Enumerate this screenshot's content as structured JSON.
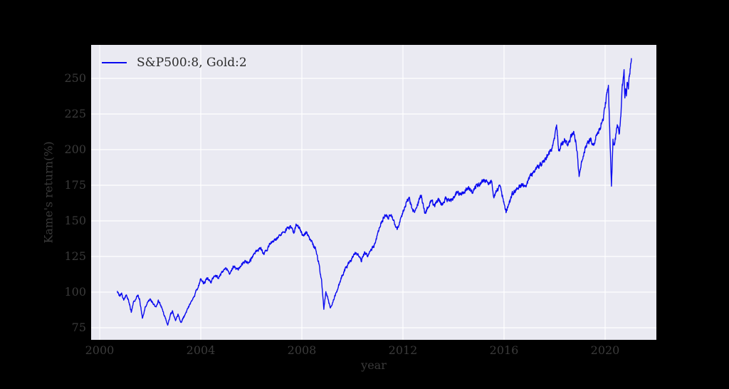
{
  "figure": {
    "page_background": "#000000",
    "plot_background": "#eaeaf2",
    "grid_color": "#ffffff",
    "line_color": "#0a0af0",
    "tick_label_color": "#3a3a3a",
    "legend_text_color": "#2b2b2b"
  },
  "chart_data": {
    "type": "line",
    "title": "",
    "xlabel": "year",
    "ylabel": "Kame's return(%)",
    "grid": true,
    "legend_position": "upper left",
    "legend": [
      {
        "label": "S&P500:8, Gold:2",
        "color": "#0a0af0"
      }
    ],
    "x_ticks": [
      2000,
      2004,
      2008,
      2012,
      2016,
      2020
    ],
    "y_ticks": [
      75,
      100,
      125,
      150,
      175,
      200,
      225,
      250
    ],
    "xlim": [
      1999.662,
      2022.028
    ],
    "ylim": [
      66.5,
      273.5
    ],
    "series": [
      {
        "name": "S&P500:8, Gold:2",
        "x_start": 2000.7,
        "x_end": 2021.04,
        "anchors": [
          [
            2000.7,
            100
          ],
          [
            2000.78,
            97
          ],
          [
            2000.86,
            99
          ],
          [
            2000.95,
            95
          ],
          [
            2001.05,
            98
          ],
          [
            2001.15,
            94
          ],
          [
            2001.25,
            86
          ],
          [
            2001.33,
            92
          ],
          [
            2001.42,
            95
          ],
          [
            2001.5,
            98
          ],
          [
            2001.58,
            95
          ],
          [
            2001.69,
            82
          ],
          [
            2001.8,
            89
          ],
          [
            2001.9,
            93
          ],
          [
            2002.0,
            95
          ],
          [
            2002.1,
            92
          ],
          [
            2002.22,
            90
          ],
          [
            2002.33,
            94
          ],
          [
            2002.45,
            89
          ],
          [
            2002.55,
            84
          ],
          [
            2002.7,
            77
          ],
          [
            2002.8,
            84
          ],
          [
            2002.88,
            86
          ],
          [
            2003.0,
            80
          ],
          [
            2003.1,
            84
          ],
          [
            2003.22,
            79
          ],
          [
            2003.35,
            83
          ],
          [
            2003.5,
            89
          ],
          [
            2003.65,
            94
          ],
          [
            2003.8,
            100
          ],
          [
            2003.92,
            105
          ],
          [
            2004.0,
            109
          ],
          [
            2004.12,
            106
          ],
          [
            2004.25,
            110
          ],
          [
            2004.4,
            107
          ],
          [
            2004.55,
            112
          ],
          [
            2004.7,
            110
          ],
          [
            2004.85,
            114
          ],
          [
            2005.0,
            117
          ],
          [
            2005.15,
            113
          ],
          [
            2005.3,
            118
          ],
          [
            2005.45,
            116
          ],
          [
            2005.6,
            119
          ],
          [
            2005.75,
            122
          ],
          [
            2005.9,
            120
          ],
          [
            2006.05,
            125
          ],
          [
            2006.2,
            129
          ],
          [
            2006.35,
            131
          ],
          [
            2006.5,
            127
          ],
          [
            2006.65,
            131
          ],
          [
            2006.8,
            135
          ],
          [
            2006.95,
            137
          ],
          [
            2007.1,
            139
          ],
          [
            2007.25,
            142
          ],
          [
            2007.4,
            144
          ],
          [
            2007.55,
            146
          ],
          [
            2007.68,
            142
          ],
          [
            2007.8,
            148
          ],
          [
            2007.92,
            144
          ],
          [
            2008.05,
            139
          ],
          [
            2008.17,
            142
          ],
          [
            2008.3,
            138
          ],
          [
            2008.42,
            134
          ],
          [
            2008.55,
            130
          ],
          [
            2008.67,
            120
          ],
          [
            2008.78,
            108
          ],
          [
            2008.87,
            88
          ],
          [
            2008.95,
            100
          ],
          [
            2009.03,
            95
          ],
          [
            2009.13,
            89
          ],
          [
            2009.22,
            93
          ],
          [
            2009.33,
            98
          ],
          [
            2009.45,
            104
          ],
          [
            2009.58,
            111
          ],
          [
            2009.72,
            116
          ],
          [
            2009.85,
            120
          ],
          [
            2010.0,
            124
          ],
          [
            2010.12,
            128
          ],
          [
            2010.25,
            126
          ],
          [
            2010.35,
            122
          ],
          [
            2010.48,
            128
          ],
          [
            2010.6,
            125
          ],
          [
            2010.72,
            129
          ],
          [
            2010.85,
            132
          ],
          [
            2010.95,
            138
          ],
          [
            2011.05,
            144
          ],
          [
            2011.18,
            150
          ],
          [
            2011.3,
            155
          ],
          [
            2011.42,
            152
          ],
          [
            2011.52,
            155
          ],
          [
            2011.63,
            150
          ],
          [
            2011.77,
            144
          ],
          [
            2011.88,
            149
          ],
          [
            2012.0,
            156
          ],
          [
            2012.12,
            162
          ],
          [
            2012.25,
            166
          ],
          [
            2012.35,
            160
          ],
          [
            2012.45,
            156
          ],
          [
            2012.58,
            162
          ],
          [
            2012.73,
            168
          ],
          [
            2012.87,
            155
          ],
          [
            2013.0,
            160
          ],
          [
            2013.12,
            164
          ],
          [
            2013.25,
            161
          ],
          [
            2013.4,
            165
          ],
          [
            2013.55,
            162
          ],
          [
            2013.7,
            166
          ],
          [
            2013.85,
            164
          ],
          [
            2014.0,
            167
          ],
          [
            2014.15,
            170
          ],
          [
            2014.3,
            168
          ],
          [
            2014.45,
            171
          ],
          [
            2014.6,
            173
          ],
          [
            2014.75,
            170
          ],
          [
            2014.9,
            174
          ],
          [
            2015.05,
            176
          ],
          [
            2015.2,
            179
          ],
          [
            2015.35,
            176
          ],
          [
            2015.5,
            178
          ],
          [
            2015.6,
            167
          ],
          [
            2015.72,
            172
          ],
          [
            2015.85,
            174
          ],
          [
            2015.95,
            166
          ],
          [
            2016.08,
            156
          ],
          [
            2016.2,
            162
          ],
          [
            2016.33,
            169
          ],
          [
            2016.48,
            172
          ],
          [
            2016.6,
            174
          ],
          [
            2016.72,
            176
          ],
          [
            2016.85,
            173
          ],
          [
            2017.0,
            180
          ],
          [
            2017.15,
            184
          ],
          [
            2017.3,
            187
          ],
          [
            2017.45,
            190
          ],
          [
            2017.6,
            192
          ],
          [
            2017.75,
            196
          ],
          [
            2017.88,
            200
          ],
          [
            2018.0,
            208
          ],
          [
            2018.08,
            216
          ],
          [
            2018.17,
            199
          ],
          [
            2018.28,
            204
          ],
          [
            2018.4,
            207
          ],
          [
            2018.52,
            203
          ],
          [
            2018.65,
            209
          ],
          [
            2018.78,
            212
          ],
          [
            2018.88,
            200
          ],
          [
            2018.97,
            182
          ],
          [
            2019.08,
            193
          ],
          [
            2019.2,
            200
          ],
          [
            2019.33,
            205
          ],
          [
            2019.45,
            208
          ],
          [
            2019.52,
            202
          ],
          [
            2019.65,
            210
          ],
          [
            2019.8,
            215
          ],
          [
            2019.92,
            222
          ],
          [
            2020.0,
            231
          ],
          [
            2020.08,
            240
          ],
          [
            2020.13,
            244
          ],
          [
            2020.18,
            215
          ],
          [
            2020.25,
            174
          ],
          [
            2020.31,
            207
          ],
          [
            2020.36,
            201
          ],
          [
            2020.44,
            212
          ],
          [
            2020.5,
            218
          ],
          [
            2020.56,
            212
          ],
          [
            2020.63,
            226
          ],
          [
            2020.68,
            244
          ],
          [
            2020.72,
            250
          ],
          [
            2020.75,
            255
          ],
          [
            2020.78,
            236
          ],
          [
            2020.81,
            244
          ],
          [
            2020.84,
            239
          ],
          [
            2020.88,
            248
          ],
          [
            2020.92,
            244
          ],
          [
            2020.96,
            252
          ],
          [
            2021.0,
            258
          ],
          [
            2021.04,
            262
          ]
        ]
      }
    ]
  }
}
